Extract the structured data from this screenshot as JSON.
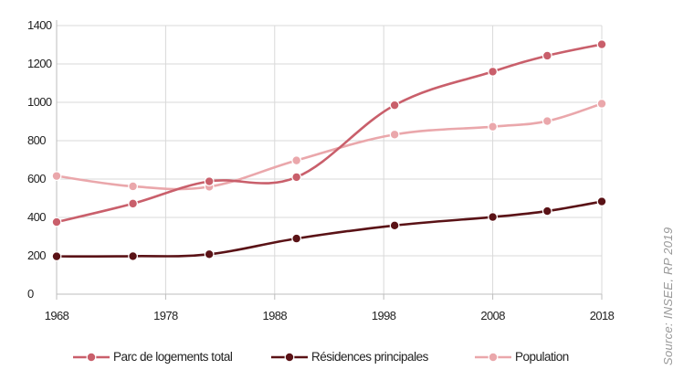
{
  "chart_data": {
    "type": "line",
    "title": "",
    "xlabel": "",
    "ylabel": "",
    "xlim": [
      1968,
      2018
    ],
    "ylim": [
      0,
      1400
    ],
    "x_ticks": [
      "1968",
      "1978",
      "1988",
      "1998",
      "2008",
      "2018"
    ],
    "y_ticks": [
      "0",
      "200",
      "400",
      "600",
      "800",
      "1000",
      "1200",
      "1400"
    ],
    "grid": true,
    "legend_position": "bottom",
    "x": [
      1968,
      1975,
      1982,
      1990,
      1999,
      2008,
      2013,
      2018
    ],
    "series": [
      {
        "name": "Parc de logements total",
        "color": "#c95f6b",
        "values": [
          376,
          472,
          588,
          610,
          985,
          1160,
          1243,
          1302
        ]
      },
      {
        "name": "Résidences principales",
        "color": "#5a1216",
        "values": [
          197,
          198,
          208,
          290,
          358,
          402,
          433,
          483
        ]
      },
      {
        "name": "Population",
        "color": "#eaa7ab",
        "values": [
          616,
          562,
          560,
          697,
          832,
          873,
          902,
          993
        ]
      }
    ],
    "source": "Source: INSEE, RP 2019"
  }
}
